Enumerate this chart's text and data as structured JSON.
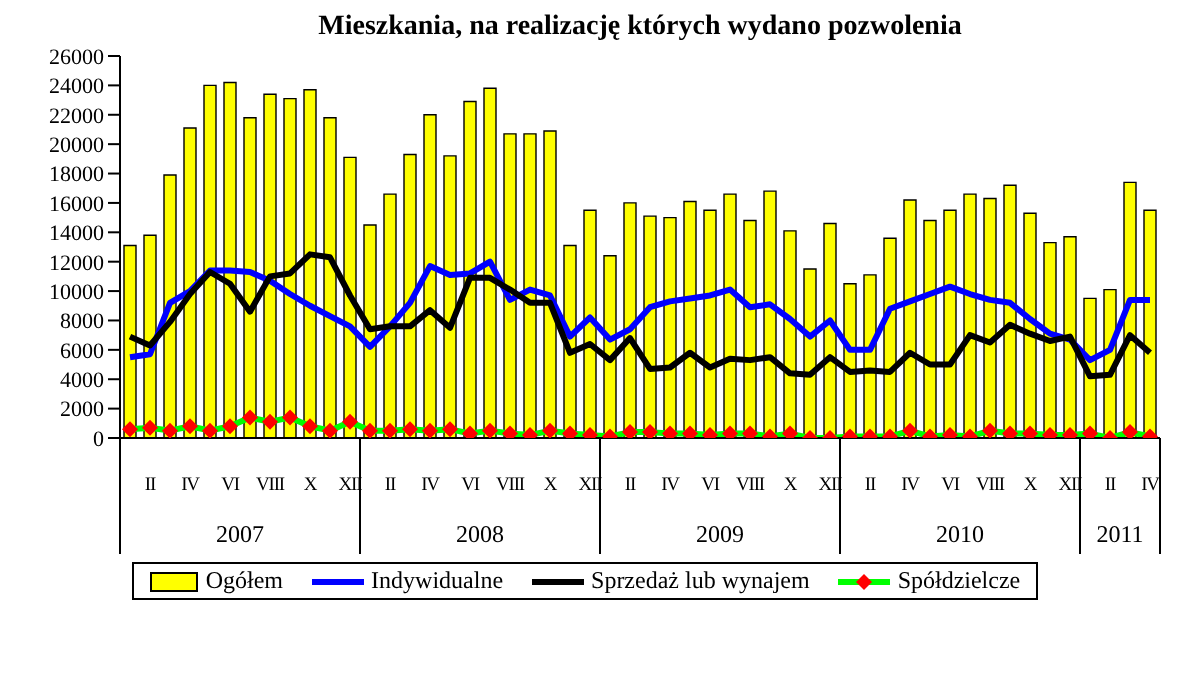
{
  "chart_data": {
    "type": "bar",
    "title": "Mieszkania, na realizację których wydano pozwolenia",
    "categories": [
      null,
      "II",
      null,
      "IV",
      null,
      "VI",
      null,
      "VIII",
      null,
      "X",
      null,
      "XII",
      null,
      "II",
      null,
      "IV",
      null,
      "VI",
      null,
      "VIII",
      null,
      "X",
      null,
      "XII",
      null,
      "II",
      null,
      "IV",
      null,
      "VI",
      null,
      "VIII",
      null,
      "X",
      null,
      "XII",
      null,
      "II",
      null,
      "IV",
      null,
      "VI",
      null,
      "VIII",
      null,
      "X",
      null,
      "XII",
      null,
      "II",
      null,
      "IV"
    ],
    "annotations": [
      "2007",
      "2008",
      "2009",
      "2010",
      "2011"
    ],
    "series": [
      {
        "name": "Ogółem",
        "color": "#ffff00",
        "values": [
          13100,
          13800,
          17900,
          21100,
          24000,
          24200,
          21800,
          23400,
          23100,
          23700,
          21800,
          19100,
          14500,
          16600,
          19300,
          22000,
          19200,
          22900,
          23800,
          20700,
          20700,
          20900,
          13100,
          15500,
          12400,
          16000,
          15100,
          15000,
          16100,
          15500,
          16600,
          14800,
          16800,
          14100,
          11500,
          14600,
          10500,
          11100,
          13600,
          16200,
          14800,
          15500,
          16600,
          16300,
          17200,
          15300,
          13300,
          13700,
          9500,
          10100,
          17400,
          15500
        ]
      },
      {
        "name": "Indywidualne",
        "type": "line",
        "color": "#0000ff",
        "values": [
          5500,
          5700,
          9200,
          10000,
          11400,
          11400,
          11300,
          10700,
          9800,
          9000,
          8300,
          7600,
          6200,
          7600,
          9200,
          11700,
          11100,
          11200,
          12000,
          9400,
          10100,
          9700,
          6900,
          8200,
          6700,
          7400,
          8900,
          9300,
          9500,
          9700,
          10100,
          8900,
          9100,
          8100,
          6900,
          8000,
          6000,
          6000,
          8800,
          9300,
          9800,
          10300,
          9800,
          9400,
          9200,
          8100,
          7100,
          6700,
          5300,
          6000,
          9400,
          9400
        ]
      },
      {
        "name": "Sprzedaż lub wynajem",
        "type": "line",
        "color": "#000000",
        "values": [
          6900,
          6300,
          7900,
          9800,
          11300,
          10500,
          8600,
          11000,
          11200,
          12500,
          12300,
          9700,
          7400,
          7600,
          7600,
          8700,
          7500,
          10900,
          10900,
          10100,
          9200,
          9200,
          5800,
          6400,
          5300,
          6800,
          4700,
          4800,
          5800,
          4800,
          5400,
          5300,
          5500,
          4400,
          4300,
          5500,
          4500,
          4600,
          4500,
          5800,
          5000,
          5000,
          7000,
          6500,
          7700,
          7100,
          6600,
          6900,
          4200,
          4300,
          7000,
          5800
        ]
      },
      {
        "name": "Spółdzielcze",
        "type": "line",
        "color": "#00ff00",
        "marker": "diamond",
        "colors": [
          "#ff0000",
          "#ff0000",
          "#ff0000",
          "#ff0000",
          "#ff0000",
          "#ff0000",
          "#ff0000",
          "#ff0000",
          "#ff0000",
          "#ff0000",
          "#ff0000",
          "#ff0000",
          "#ff0000",
          "#ff0000",
          "#ff0000",
          "#ff0000",
          "#ff0000",
          "#ff0000",
          "#ff0000",
          "#ff0000",
          "#ff0000",
          "#ff0000",
          "#ff0000",
          "#ff0000",
          "#ff0000",
          "#ff0000",
          "#ff0000",
          "#ff0000",
          "#ff0000",
          "#ff0000",
          "#ff0000",
          "#ff0000",
          "#ff0000",
          "#ff0000",
          "#ff0000",
          "#ff0000",
          "#ff0000",
          "#ff0000",
          "#ff0000",
          "#ff0000",
          "#ff0000",
          "#ff0000",
          "#ff0000",
          "#ff0000",
          "#ff0000",
          "#ff0000",
          "#ff0000",
          "#ff0000",
          "#ff0000",
          "#ff0000",
          "#ff0000",
          "#ff0000"
        ],
        "values": [
          600,
          700,
          500,
          800,
          500,
          800,
          1400,
          1100,
          1400,
          800,
          500,
          1100,
          500,
          500,
          600,
          500,
          600,
          300,
          500,
          300,
          200,
          500,
          300,
          200,
          100,
          400,
          400,
          300,
          300,
          200,
          300,
          300,
          100,
          300,
          0,
          0,
          100,
          100,
          100,
          500,
          100,
          200,
          100,
          500,
          300,
          300,
          200,
          200,
          300,
          0,
          400,
          100
        ]
      }
    ],
    "ylim": [
      0,
      26000
    ],
    "yticks": [
      0,
      2000,
      4000,
      6000,
      8000,
      10000,
      12000,
      14000,
      16000,
      18000,
      20000,
      22000,
      24000,
      26000
    ],
    "grid": false,
    "legend": "bottom"
  }
}
